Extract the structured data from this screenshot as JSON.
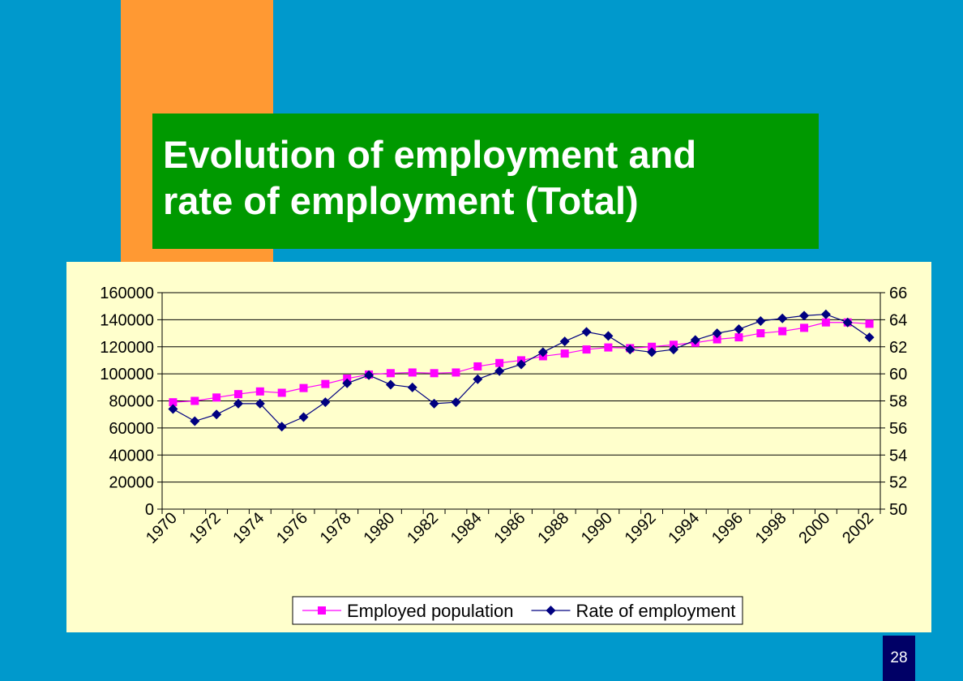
{
  "slide": {
    "title": "Evolution of employment and\nrate of employment (Total)",
    "page_number": "28"
  },
  "colors": {
    "background": "#0099cc",
    "accent_bar": "#ff9933",
    "title_background": "#009900",
    "chart_background": "#ffffcc",
    "employed_series": "#ff00ff",
    "rate_series": "#000080"
  },
  "chart_data": {
    "type": "line",
    "title": "",
    "x": [
      1970,
      1971,
      1972,
      1973,
      1974,
      1975,
      1976,
      1977,
      1978,
      1979,
      1980,
      1981,
      1982,
      1983,
      1984,
      1985,
      1986,
      1987,
      1988,
      1989,
      1990,
      1991,
      1992,
      1993,
      1994,
      1995,
      1996,
      1997,
      1998,
      1999,
      2000,
      2001,
      2002
    ],
    "x_tick_labels": [
      "1970",
      "1972",
      "1974",
      "1976",
      "1978",
      "1980",
      "1982",
      "1984",
      "1986",
      "1988",
      "1990",
      "1992",
      "1994",
      "1996",
      "1998",
      "2000",
      "2002"
    ],
    "y_left": {
      "min": 0,
      "max": 160000,
      "ticks": [
        "0",
        "20000",
        "40000",
        "60000",
        "80000",
        "100000",
        "120000",
        "140000",
        "160000"
      ]
    },
    "y_right": {
      "min": 50,
      "max": 66,
      "ticks": [
        "50",
        "52",
        "54",
        "56",
        "58",
        "60",
        "62",
        "64",
        "66"
      ]
    },
    "grid": true,
    "legend_position": "bottom",
    "series": [
      {
        "name": "Employed population",
        "axis": "left",
        "marker": "square",
        "values": [
          79000,
          80000,
          82500,
          85000,
          87000,
          86000,
          89500,
          92500,
          96500,
          99500,
          100500,
          101000,
          100500,
          101000,
          105500,
          108000,
          110000,
          113000,
          115000,
          118000,
          119500,
          119000,
          120000,
          121500,
          123000,
          125500,
          127000,
          130000,
          131500,
          134000,
          138000,
          138000,
          137000
        ]
      },
      {
        "name": "Rate of employment",
        "axis": "right",
        "marker": "diamond",
        "values": [
          57.4,
          56.5,
          57.0,
          57.8,
          57.8,
          56.1,
          56.8,
          57.9,
          59.3,
          59.9,
          59.2,
          59.0,
          57.8,
          57.9,
          59.6,
          60.2,
          60.7,
          61.6,
          62.4,
          63.1,
          62.8,
          61.8,
          61.6,
          61.8,
          62.5,
          63.0,
          63.3,
          63.9,
          64.1,
          64.3,
          64.4,
          63.8,
          62.7
        ]
      }
    ]
  }
}
